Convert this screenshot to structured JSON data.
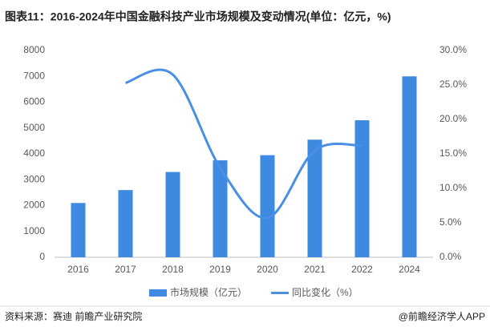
{
  "chart_data": {
    "type": "bar-line",
    "title": "图表11：2016-2024年中国金融科技产业市场规模及变动情况(单位：亿元，%)",
    "categories": [
      "2016",
      "2017",
      "2018",
      "2019",
      "2020",
      "2021",
      "2022",
      "2024"
    ],
    "series": [
      {
        "name": "市场规模（亿元）",
        "type": "bar",
        "color": "#3d8ae0",
        "values": [
          2100,
          2600,
          3300,
          3750,
          3950,
          4550,
          5300,
          7000
        ]
      },
      {
        "name": "同比变化（%）",
        "type": "line",
        "axis": "y2",
        "color": "#4a8fe6",
        "values": [
          null,
          25.3,
          26.5,
          13,
          5.7,
          15.5,
          16.2,
          null
        ]
      }
    ],
    "ylim": [
      0,
      8000
    ],
    "yticks": [
      0,
      1000,
      2000,
      3000,
      4000,
      5000,
      6000,
      7000,
      8000
    ],
    "y2lim": [
      0,
      30
    ],
    "y2ticks": [
      {
        "value": 0,
        "label": "0.0%"
      },
      {
        "value": 5,
        "label": "5.0%"
      },
      {
        "value": 10,
        "label": "10.0%"
      },
      {
        "value": 15,
        "label": "15.0%"
      },
      {
        "value": 20,
        "label": "20.0%"
      },
      {
        "value": 25,
        "label": "25.0%"
      },
      {
        "value": 30,
        "label": "30.0%"
      }
    ],
    "grid": false,
    "source": "资料来源：赛迪 前瞻产业研究院",
    "credit": "@前瞻经济学人APP"
  }
}
